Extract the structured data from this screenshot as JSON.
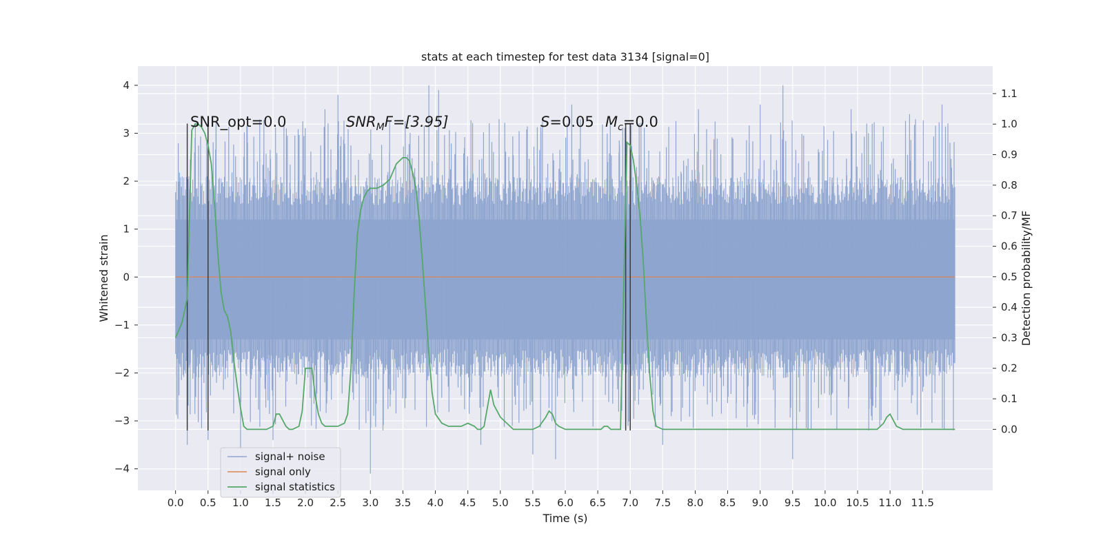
{
  "chart_data": {
    "type": "line",
    "title": "stats at each timestep for test data 3134 [signal=0]",
    "xlabel": "Time (s)",
    "ylabel": "Whitened strain",
    "ylabel_right": "Detection probability/MF",
    "xlim": [
      -0.58,
      12.58
    ],
    "ylim": [
      -4.45,
      4.4
    ],
    "ylim_right": [
      -0.2,
      1.19
    ],
    "x_ticks": [
      "0.0",
      "0.5",
      "1.0",
      "1.5",
      "2.0",
      "2.5",
      "3.0",
      "3.5",
      "4.0",
      "4.5",
      "5.0",
      "5.5",
      "6.0",
      "6.5",
      "7.0",
      "7.5",
      "8.0",
      "8.5",
      "9.0",
      "9.5",
      "10.0",
      "10.5",
      "11.0",
      "11.5"
    ],
    "y_ticks": [
      "4",
      "3",
      "2",
      "1",
      "0",
      "−1",
      "−2",
      "−3",
      "−4"
    ],
    "y_ticks_right": [
      "1.1",
      "1.0",
      "0.9",
      "0.8",
      "0.7",
      "0.6",
      "0.5",
      "0.4",
      "0.3",
      "0.2",
      "0.1",
      "0.0"
    ],
    "grid": true,
    "legend_position": "lower-left",
    "annotations": {
      "snr_opt": "SNR_opt=0.0",
      "snr_mf_main": "SNR",
      "snr_mf_sub": "M",
      "snr_mf_rest": "F=[3.95]",
      "s_var": "S",
      "s_val": "=0.05",
      "mc_var": "M",
      "mc_sub": "c",
      "mc_val": "=0.0"
    },
    "series": [
      {
        "name": "signal+ noise",
        "color": "#8ea5cf",
        "kind": "noise",
        "x_range": [
          0.0,
          12.0
        ],
        "envelope": {
          "typical_range": [
            -2.0,
            2.0
          ],
          "peak_values": [
            [
              0.18,
              -3.5
            ],
            [
              0.3,
              2.9
            ],
            [
              0.5,
              -3.4
            ],
            [
              1.0,
              -3.6
            ],
            [
              1.5,
              -3.4
            ],
            [
              2.3,
              3.5
            ],
            [
              2.5,
              3.8
            ],
            [
              3.0,
              -4.1
            ],
            [
              3.9,
              4.0
            ],
            [
              4.05,
              3.9
            ],
            [
              4.7,
              -3.5
            ],
            [
              5.5,
              -3.7
            ],
            [
              5.85,
              -3.8
            ],
            [
              6.1,
              3.6
            ],
            [
              7.5,
              -3.5
            ],
            [
              8.05,
              3.5
            ],
            [
              9.0,
              3.6
            ],
            [
              9.35,
              4.0
            ],
            [
              9.5,
              -3.8
            ],
            [
              10.4,
              3.5
            ],
            [
              11.3,
              3.4
            ],
            [
              11.8,
              3.6
            ]
          ]
        }
      },
      {
        "name": "signal only",
        "color": "#dd8452",
        "x": [
          0.0,
          12.0
        ],
        "y": [
          0.0,
          0.0
        ]
      },
      {
        "name": "signal statistics",
        "color": "#55a868",
        "axis": "right",
        "x": [
          0.0,
          0.1,
          0.18,
          0.25,
          0.3,
          0.35,
          0.4,
          0.45,
          0.5,
          0.55,
          0.6,
          0.65,
          0.7,
          0.75,
          0.8,
          0.85,
          0.9,
          0.95,
          1.0,
          1.05,
          1.1,
          1.2,
          1.3,
          1.4,
          1.5,
          1.55,
          1.6,
          1.65,
          1.7,
          1.75,
          1.8,
          1.9,
          1.95,
          2.0,
          2.05,
          2.1,
          2.15,
          2.2,
          2.25,
          2.3,
          2.4,
          2.5,
          2.6,
          2.65,
          2.7,
          2.75,
          2.8,
          2.85,
          2.9,
          2.95,
          3.0,
          3.1,
          3.2,
          3.3,
          3.4,
          3.5,
          3.55,
          3.6,
          3.65,
          3.7,
          3.75,
          3.8,
          3.85,
          3.9,
          3.95,
          4.0,
          4.1,
          4.2,
          4.3,
          4.4,
          4.5,
          4.6,
          4.65,
          4.7,
          4.75,
          4.8,
          4.85,
          4.9,
          5.0,
          5.1,
          5.2,
          5.3,
          5.4,
          5.5,
          5.6,
          5.7,
          5.75,
          5.8,
          5.85,
          5.9,
          6.0,
          6.2,
          6.4,
          6.55,
          6.6,
          6.65,
          6.7,
          6.8,
          6.85,
          6.9,
          6.95,
          7.0,
          7.05,
          7.1,
          7.15,
          7.2,
          7.25,
          7.3,
          7.35,
          7.4,
          7.5,
          7.6,
          7.8,
          8.0,
          8.2,
          8.4,
          8.6,
          8.8,
          9.0,
          9.2,
          9.4,
          9.6,
          9.8,
          10.0,
          10.2,
          10.4,
          10.6,
          10.8,
          10.9,
          10.95,
          11.0,
          11.05,
          11.1,
          11.2,
          11.4,
          11.6,
          11.8,
          12.0
        ],
        "y": [
          0.3,
          0.35,
          0.43,
          0.98,
          1.0,
          1.0,
          0.99,
          0.97,
          0.93,
          0.87,
          0.74,
          0.58,
          0.45,
          0.39,
          0.37,
          0.32,
          0.22,
          0.14,
          0.07,
          0.01,
          0.0,
          0.0,
          0.0,
          0.0,
          0.01,
          0.05,
          0.05,
          0.03,
          0.01,
          0.0,
          0.0,
          0.01,
          0.06,
          0.2,
          0.2,
          0.2,
          0.11,
          0.05,
          0.02,
          0.01,
          0.01,
          0.01,
          0.02,
          0.05,
          0.2,
          0.45,
          0.64,
          0.72,
          0.76,
          0.78,
          0.79,
          0.79,
          0.8,
          0.82,
          0.87,
          0.89,
          0.89,
          0.88,
          0.84,
          0.79,
          0.69,
          0.55,
          0.4,
          0.25,
          0.12,
          0.05,
          0.02,
          0.01,
          0.01,
          0.01,
          0.02,
          0.01,
          0.0,
          0.0,
          0.01,
          0.07,
          0.13,
          0.08,
          0.04,
          0.02,
          0.0,
          0.0,
          0.0,
          0.0,
          0.01,
          0.04,
          0.06,
          0.05,
          0.02,
          0.01,
          0.0,
          0.0,
          0.0,
          0.0,
          0.01,
          0.01,
          0.0,
          0.0,
          0.0,
          0.47,
          0.94,
          0.93,
          0.88,
          0.8,
          0.7,
          0.55,
          0.35,
          0.18,
          0.06,
          0.01,
          0.0,
          0.0,
          0.0,
          0.0,
          0.0,
          0.0,
          0.0,
          0.0,
          0.0,
          0.0,
          0.0,
          0.0,
          0.0,
          0.0,
          0.0,
          0.0,
          0.0,
          0.0,
          0.02,
          0.04,
          0.05,
          0.03,
          0.01,
          0.0,
          0.0,
          0.0,
          0.0,
          0.0
        ]
      }
    ],
    "vertical_markers": [
      {
        "x": 0.18,
        "y_top": 3.2,
        "y_bottom": -3.2
      },
      {
        "x": 0.5,
        "y_top": 3.2,
        "y_bottom": -3.2
      },
      {
        "x": 6.93,
        "y_top": 3.2,
        "y_bottom": -3.2
      },
      {
        "x": 7.0,
        "y_top": 3.2,
        "y_bottom": -3.2
      }
    ]
  }
}
